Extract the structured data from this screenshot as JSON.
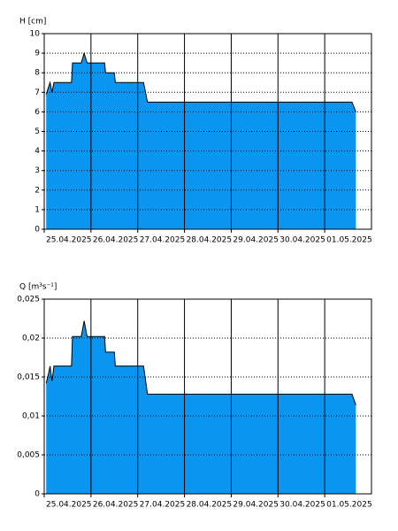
{
  "chart_data": [
    {
      "type": "area",
      "ylabel": "H [cm]",
      "color": "#0a96f0",
      "grid": true,
      "x": [
        "2025-04-25T01:00",
        "2025-04-25T02:00",
        "2025-04-25T03:00",
        "2025-04-25T04:00",
        "2025-04-25T05:00",
        "2025-04-25T14:00",
        "2025-04-25T14:30",
        "2025-04-25T19:00",
        "2025-04-25T20:30",
        "2025-04-25T22:00",
        "2025-04-26T07:00",
        "2025-04-26T07:30",
        "2025-04-26T12:00",
        "2025-04-26T12:30",
        "2025-04-27T03:00",
        "2025-04-27T05:00",
        "2025-05-01T14:00",
        "2025-05-01T16:00"
      ],
      "values": [
        6.9,
        7.2,
        7.5,
        7.0,
        7.5,
        7.5,
        8.5,
        8.5,
        9.0,
        8.5,
        8.5,
        8.0,
        8.0,
        7.5,
        7.5,
        6.5,
        6.5,
        6.0
      ],
      "xlim": [
        "2025-04-25T00:00",
        "2025-05-02T00:00"
      ],
      "xticks": [
        {
          "value": "2025-04-25T00:00",
          "label": "25.04.2025"
        },
        {
          "value": "2025-04-26T00:00",
          "label": "26.04.2025"
        },
        {
          "value": "2025-04-27T00:00",
          "label": "27.04.2025"
        },
        {
          "value": "2025-04-28T00:00",
          "label": "28.04.2025"
        },
        {
          "value": "2025-04-29T00:00",
          "label": "29.04.2025"
        },
        {
          "value": "2025-04-30T00:00",
          "label": "30.04.2025"
        },
        {
          "value": "2025-05-01T00:00",
          "label": "01.05.2025"
        }
      ],
      "ylim": [
        0,
        10
      ],
      "yticks": [
        0,
        1,
        2,
        3,
        4,
        5,
        6,
        7,
        8,
        9,
        10
      ]
    },
    {
      "type": "area",
      "ylabel": "Q [m³s⁻¹]",
      "color": "#0a96f0",
      "grid": true,
      "x": [
        "2025-04-25T01:00",
        "2025-04-25T02:00",
        "2025-04-25T03:00",
        "2025-04-25T04:00",
        "2025-04-25T05:00",
        "2025-04-25T14:00",
        "2025-04-25T14:30",
        "2025-04-25T19:00",
        "2025-04-25T20:30",
        "2025-04-25T22:00",
        "2025-04-26T07:00",
        "2025-04-26T07:30",
        "2025-04-26T12:00",
        "2025-04-26T12:30",
        "2025-04-27T03:00",
        "2025-04-27T05:00",
        "2025-05-01T14:00",
        "2025-05-01T16:00"
      ],
      "values": [
        0.0142,
        0.0152,
        0.0164,
        0.0145,
        0.0164,
        0.0164,
        0.0202,
        0.0202,
        0.0222,
        0.0202,
        0.0202,
        0.0182,
        0.0182,
        0.0164,
        0.0164,
        0.0128,
        0.0128,
        0.0114
      ],
      "xlim": [
        "2025-04-25T00:00",
        "2025-05-02T00:00"
      ],
      "xticks": [
        {
          "value": "2025-04-25T00:00",
          "label": "25.04.2025"
        },
        {
          "value": "2025-04-26T00:00",
          "label": "26.04.2025"
        },
        {
          "value": "2025-04-27T00:00",
          "label": "27.04.2025"
        },
        {
          "value": "2025-04-28T00:00",
          "label": "28.04.2025"
        },
        {
          "value": "2025-04-29T00:00",
          "label": "29.04.2025"
        },
        {
          "value": "2025-04-30T00:00",
          "label": "30.04.2025"
        },
        {
          "value": "2025-05-01T00:00",
          "label": "01.05.2025"
        }
      ],
      "ylim": [
        0,
        0.025
      ],
      "yticks": [
        0,
        {
          "value": 0.005,
          "label": "0,005"
        },
        {
          "value": 0.01,
          "label": "0,01"
        },
        {
          "value": 0.015,
          "label": "0,015"
        },
        {
          "value": 0.02,
          "label": "0,02"
        },
        {
          "value": 0.025,
          "label": "0,025"
        }
      ]
    }
  ]
}
